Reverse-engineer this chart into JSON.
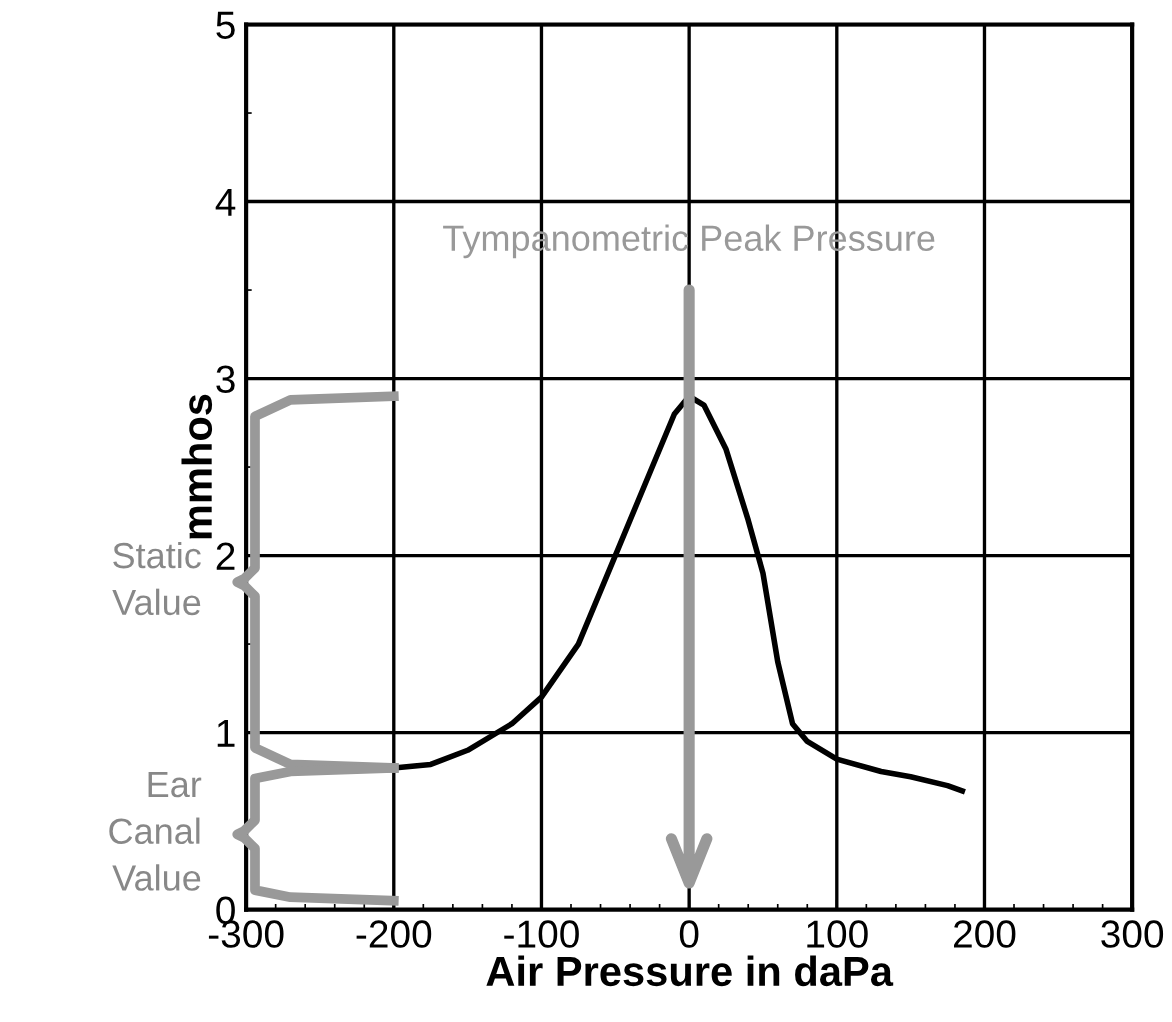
{
  "chart_data": {
    "type": "line",
    "xlabel": "Air Pressure in daPa",
    "ylabel": "mmhos",
    "x": [
      -200,
      -175,
      -150,
      -120,
      -100,
      -75,
      -50,
      -25,
      -10,
      0,
      10,
      25,
      40,
      50,
      60,
      70,
      80,
      100,
      130,
      150,
      175,
      185
    ],
    "series": [
      {
        "color": "#000000",
        "values": [
          0.8,
          0.82,
          0.9,
          1.05,
          1.2,
          1.5,
          2.0,
          2.5,
          2.8,
          2.9,
          2.85,
          2.6,
          2.2,
          1.9,
          1.4,
          1.05,
          0.95,
          0.85,
          0.78,
          0.75,
          0.7,
          0.67
        ]
      }
    ],
    "xlim": [
      -300,
      300
    ],
    "xticks": [
      -300,
      -200,
      -100,
      0,
      100,
      200,
      300
    ],
    "ylim": [
      0,
      5
    ],
    "yticks": [
      0,
      1,
      2,
      3,
      4,
      5
    ],
    "grid": true,
    "legend": false,
    "marker": "none",
    "line_style": "solid",
    "ref_lines": [
      {
        "axis": "x",
        "value": 0,
        "label": "Tympanometric Peak Pressure",
        "color": "#999999"
      }
    ],
    "annotations": [
      "Static Value",
      "Ear Canal Value"
    ]
  }
}
